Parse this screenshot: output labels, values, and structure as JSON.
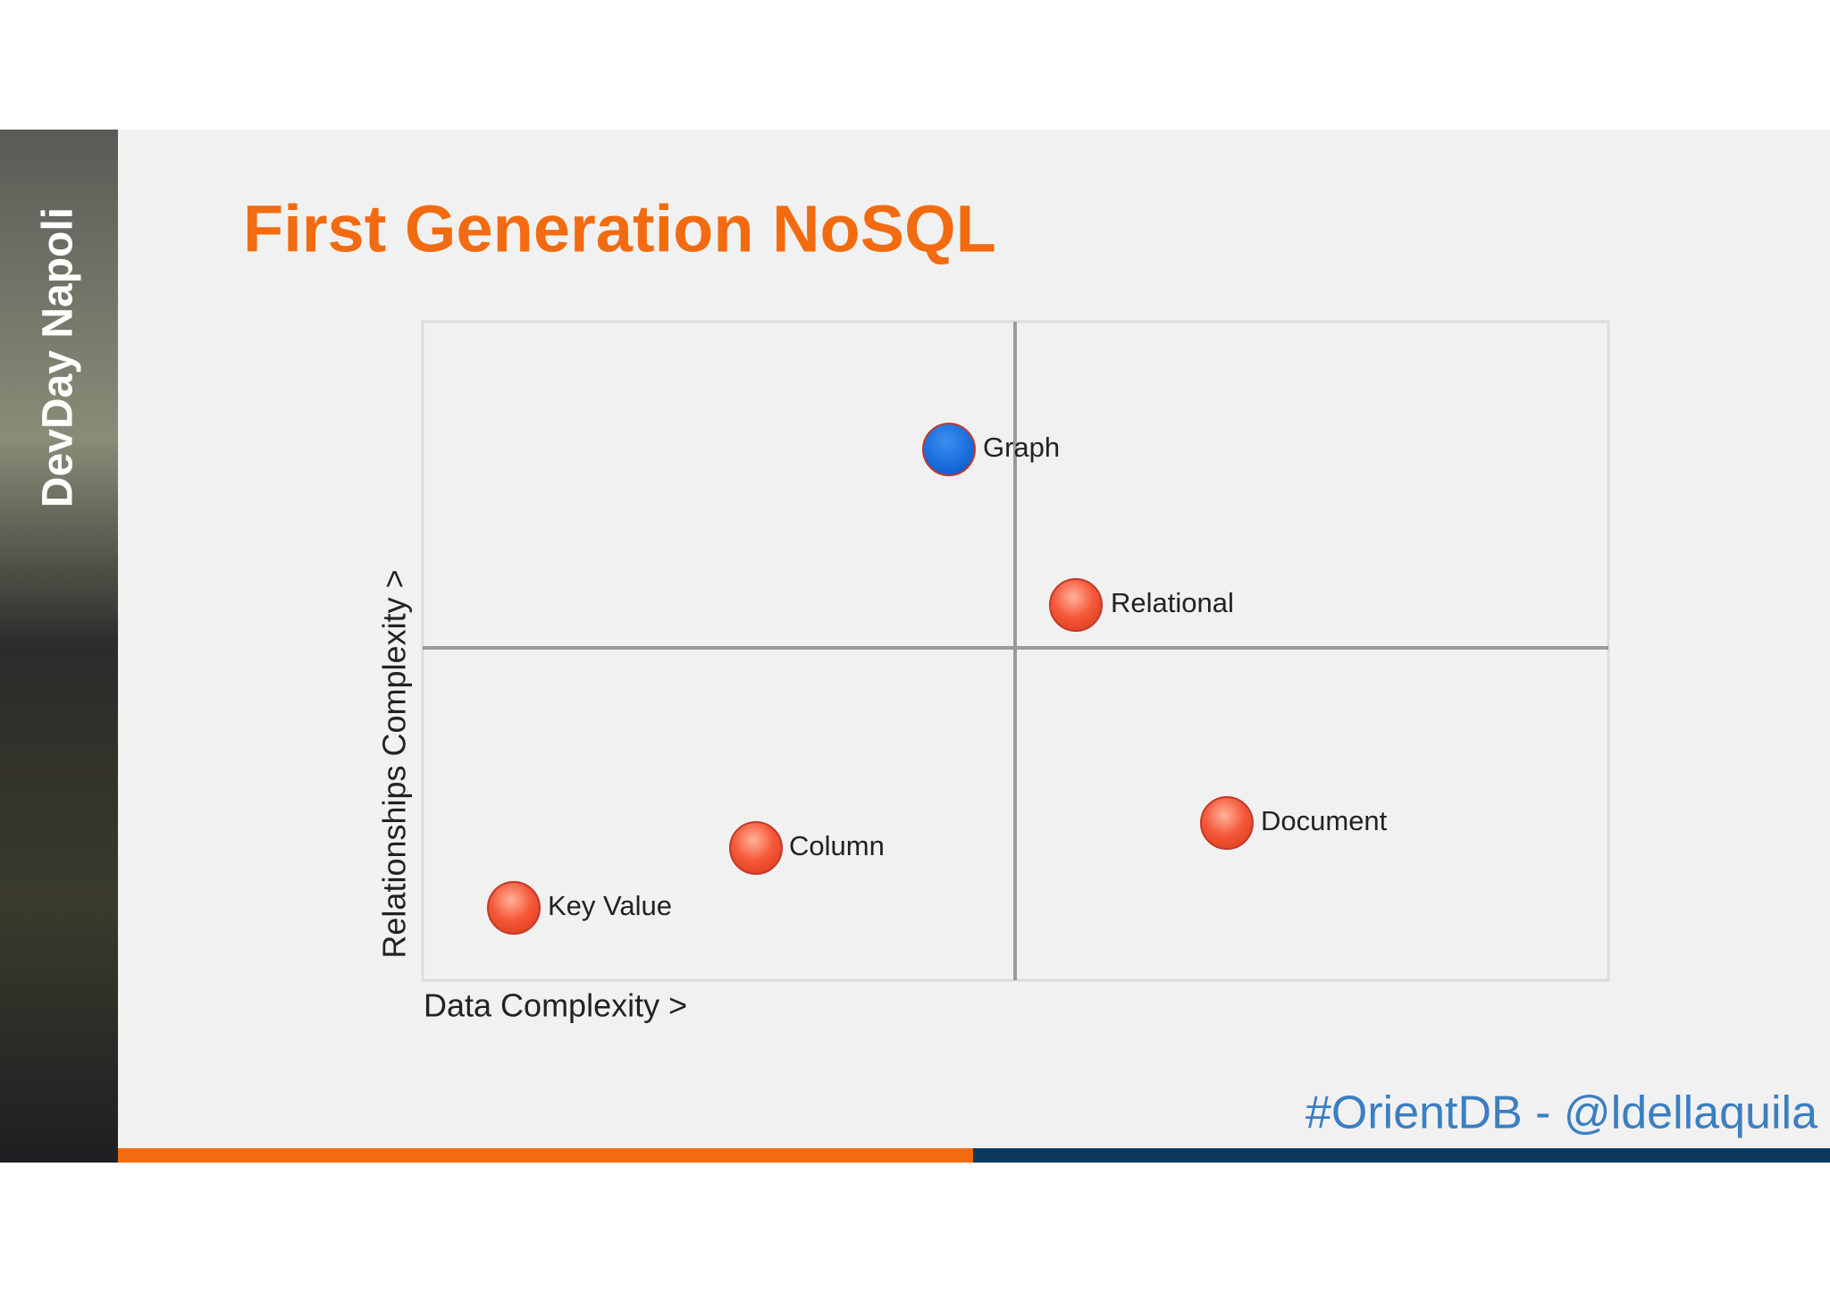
{
  "sidebar": {
    "label": "DevDay Napoli"
  },
  "header": {
    "title": "First Generation NoSQL"
  },
  "quadrant": {
    "x_axis_label": "Data Complexity >",
    "y_axis_label": "Relationships Complexity >",
    "nodes": [
      {
        "label": "Graph"
      },
      {
        "label": "Relational"
      },
      {
        "label": "Document"
      },
      {
        "label": "Column"
      },
      {
        "label": "Key Value"
      }
    ]
  },
  "footer": {
    "text": "#OrientDB - @ldellaquila"
  }
}
